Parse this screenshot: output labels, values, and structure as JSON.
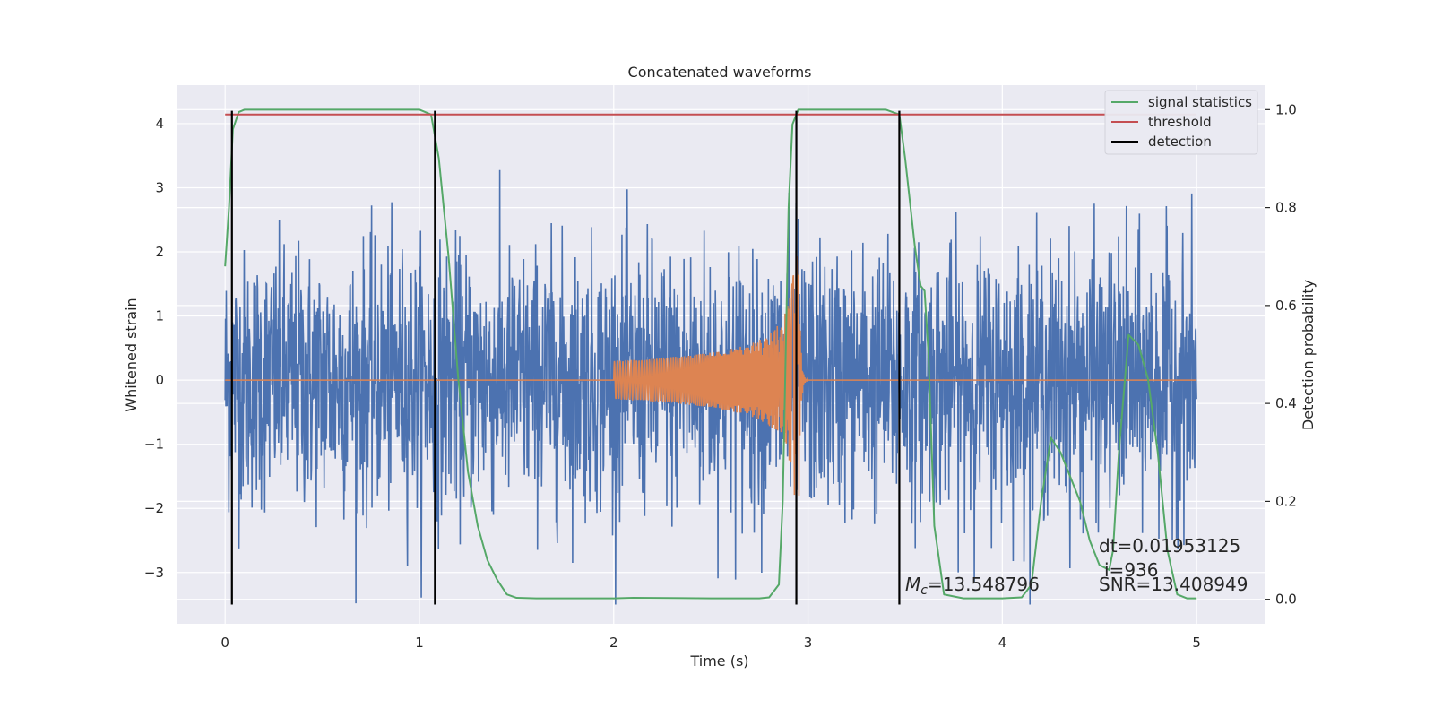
{
  "chart_data": {
    "type": "line",
    "title": "Concatenated waveforms",
    "xlabel": "Time (s)",
    "ylabel": "Whitened strain",
    "y2label": "Detection probability",
    "xlim": [
      -0.25,
      5.35
    ],
    "ylim": [
      -3.8,
      4.6
    ],
    "y2lim": [
      -0.05,
      1.05
    ],
    "xticks": [
      0,
      1,
      2,
      3,
      4,
      5
    ],
    "yticks": [
      -3,
      -2,
      -1,
      0,
      1,
      2,
      3,
      4
    ],
    "y2ticks": [
      0.0,
      0.2,
      0.4,
      0.6,
      0.8,
      1.0
    ],
    "grid": true,
    "legend_position": "top-right",
    "colors": {
      "noise": "#4c72b0",
      "template": "#dd8452",
      "signal_statistics": "#55a868",
      "threshold": "#c44e52",
      "detection": "#000000",
      "axes_bg": "#eaeaf2",
      "grid": "#ffffff"
    },
    "noise": {
      "x_range": [
        0,
        5
      ],
      "typical_amplitude": 1.0,
      "peak_amplitude": 3.5,
      "description_values": "whitened noise strain samples"
    },
    "template": {
      "start": 2.0,
      "merger": 2.95,
      "end": 3.0,
      "start_amplitude": 0.3,
      "peak_amplitude": 2.7
    },
    "series": [
      {
        "name": "signal statistics",
        "axis": "right",
        "x": [
          0.0,
          0.02,
          0.04,
          0.07,
          0.1,
          0.5,
          1.0,
          1.06,
          1.1,
          1.15,
          1.2,
          1.25,
          1.3,
          1.35,
          1.4,
          1.45,
          1.5,
          1.6,
          2.0,
          2.1,
          2.5,
          2.75,
          2.8,
          2.85,
          2.87,
          2.9,
          2.92,
          2.95,
          3.0,
          3.4,
          3.47,
          3.5,
          3.55,
          3.58,
          3.6,
          3.62,
          3.65,
          3.7,
          3.8,
          4.0,
          4.1,
          4.15,
          4.2,
          4.25,
          4.3,
          4.35,
          4.4,
          4.45,
          4.5,
          4.55,
          4.57,
          4.6,
          4.65,
          4.7,
          4.75,
          4.8,
          4.85,
          4.9,
          4.95,
          5.0
        ],
        "values": [
          0.68,
          0.8,
          0.96,
          0.995,
          1.0,
          1.0,
          1.0,
          0.99,
          0.9,
          0.7,
          0.45,
          0.26,
          0.15,
          0.08,
          0.04,
          0.01,
          0.003,
          0.002,
          0.002,
          0.003,
          0.002,
          0.002,
          0.004,
          0.03,
          0.2,
          0.8,
          0.97,
          1.0,
          1.0,
          1.0,
          0.99,
          0.9,
          0.72,
          0.64,
          0.63,
          0.5,
          0.15,
          0.01,
          0.002,
          0.002,
          0.004,
          0.03,
          0.2,
          0.33,
          0.3,
          0.25,
          0.2,
          0.12,
          0.07,
          0.06,
          0.1,
          0.3,
          0.54,
          0.52,
          0.45,
          0.3,
          0.1,
          0.01,
          0.002,
          0.002
        ]
      },
      {
        "name": "threshold",
        "axis": "right",
        "x": [
          0.0,
          5.0
        ],
        "values": [
          0.99,
          0.99
        ]
      },
      {
        "name": "detection",
        "axis": "left",
        "type": "vlines",
        "x": [
          0.035,
          1.08,
          2.94,
          3.47
        ],
        "ymin": -3.5,
        "ymax": 4.2
      }
    ],
    "annotations": {
      "mc_symbol": "M",
      "mc_sub": "c",
      "mc_value": "=13.548796",
      "dt": "dt=0.01953125",
      "i": "i=936",
      "snr": "SNR=13.408949"
    }
  }
}
